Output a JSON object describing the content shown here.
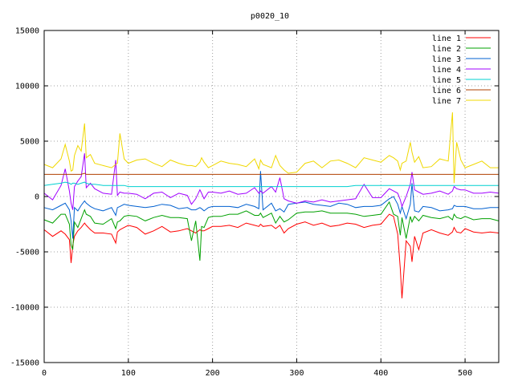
{
  "chart_data": {
    "type": "line",
    "title": "p0020_10",
    "xlabel": "",
    "ylabel": "",
    "xlim": [
      0,
      540
    ],
    "ylim": [
      -15000,
      15000
    ],
    "x_ticks": [
      0,
      100,
      200,
      300,
      400,
      500
    ],
    "y_ticks": [
      -15000,
      -10000,
      -5000,
      0,
      5000,
      10000,
      15000
    ],
    "x_tick_labels": [
      "0",
      "100",
      "200",
      "300",
      "400",
      "500"
    ],
    "y_tick_labels": [
      "-15000",
      "-10000",
      "-5000",
      "0",
      "5000",
      "10000",
      "15000"
    ],
    "grid": true,
    "legend_position": "top-right",
    "x": [
      0,
      10,
      20,
      25,
      30,
      32,
      34,
      36,
      40,
      44,
      48,
      50,
      55,
      60,
      70,
      80,
      85,
      87,
      90,
      95,
      100,
      110,
      120,
      130,
      140,
      150,
      160,
      170,
      175,
      180,
      185,
      187,
      190,
      195,
      200,
      210,
      220,
      230,
      240,
      250,
      255,
      257,
      260,
      270,
      275,
      280,
      285,
      290,
      300,
      310,
      320,
      330,
      340,
      350,
      360,
      370,
      380,
      390,
      400,
      410,
      415,
      420,
      423,
      425,
      430,
      435,
      437,
      440,
      445,
      450,
      460,
      470,
      480,
      485,
      487,
      490,
      495,
      500,
      510,
      520,
      530,
      540
    ],
    "series": [
      {
        "name": "line 1",
        "color": "#ff0000",
        "values": [
          -3000,
          -3600,
          -3100,
          -3400,
          -3900,
          -6000,
          -4400,
          -3600,
          -3100,
          -2800,
          -2400,
          -2600,
          -3000,
          -3300,
          -3300,
          -3400,
          -4200,
          -3200,
          -3000,
          -2800,
          -2600,
          -2800,
          -3400,
          -3100,
          -2700,
          -3200,
          -3100,
          -2900,
          -3100,
          -3300,
          -3000,
          -3100,
          -3100,
          -2900,
          -2700,
          -2700,
          -2600,
          -2800,
          -2400,
          -2600,
          -2700,
          -2500,
          -2700,
          -2600,
          -2900,
          -2600,
          -3300,
          -2900,
          -2500,
          -2300,
          -2600,
          -2400,
          -2700,
          -2600,
          -2400,
          -2500,
          -2800,
          -2600,
          -2500,
          -1600,
          -1800,
          -3400,
          -6500,
          -9200,
          -4000,
          -4500,
          -5900,
          -3600,
          -4800,
          -3300,
          -3000,
          -3300,
          -3500,
          -3200,
          -2800,
          -3200,
          -3300,
          -2900,
          -3200,
          -3300,
          -3200,
          -3300
        ]
      },
      {
        "name": "line 2",
        "color": "#00a000",
        "values": [
          -2100,
          -2400,
          -1600,
          -1600,
          -2500,
          -4400,
          -4800,
          -2300,
          -2800,
          -2000,
          -1200,
          -1600,
          -1800,
          -2400,
          -2500,
          -2000,
          -2900,
          -2300,
          -2200,
          -1800,
          -1700,
          -1800,
          -2200,
          -1900,
          -1700,
          -1900,
          -1900,
          -2000,
          -4000,
          -2200,
          -5800,
          -2700,
          -2800,
          -1900,
          -1800,
          -1800,
          -1600,
          -1600,
          -1300,
          -1700,
          -1700,
          -1500,
          -1900,
          -1500,
          -2400,
          -1800,
          -2300,
          -2100,
          -1500,
          -1400,
          -1400,
          -1300,
          -1500,
          -1500,
          -1500,
          -1600,
          -1800,
          -1700,
          -1600,
          -500,
          -1600,
          -1800,
          -3500,
          -1900,
          -3800,
          -1800,
          -2300,
          -1800,
          -2200,
          -1700,
          -1900,
          -2000,
          -1800,
          -2100,
          -1600,
          -1900,
          -2000,
          -1800,
          -2100,
          -2000,
          -2000,
          -2200
        ]
      },
      {
        "name": "line 3",
        "color": "#0060d0",
        "values": [
          -1000,
          -1200,
          -800,
          -600,
          -1200,
          -2200,
          -3800,
          -1000,
          -1300,
          -800,
          -400,
          -600,
          -900,
          -1100,
          -1300,
          -1000,
          -1700,
          -1000,
          -900,
          -700,
          -800,
          -900,
          -1000,
          -900,
          -700,
          -800,
          -1100,
          -1000,
          -1200,
          -1200,
          -1000,
          -1100,
          -1300,
          -1000,
          -900,
          -900,
          -900,
          -1000,
          -700,
          -900,
          -1100,
          2300,
          -1200,
          -600,
          -1300,
          -1100,
          -1400,
          -700,
          -600,
          -500,
          -700,
          -800,
          -900,
          -600,
          -700,
          -1000,
          -900,
          -900,
          -800,
          -200,
          0,
          -700,
          -1500,
          -900,
          -2000,
          -700,
          1200,
          -1300,
          -1400,
          -900,
          -1000,
          -1300,
          -1200,
          -1100,
          -800,
          -900,
          -900,
          -900,
          -1100,
          -1100,
          -1000,
          -1000
        ]
      },
      {
        "name": "line 4",
        "color": "#a000ff",
        "values": [
          300,
          -300,
          1000,
          2500,
          500,
          -600,
          -1200,
          900,
          1400,
          1800,
          3900,
          800,
          1200,
          700,
          300,
          200,
          3300,
          100,
          400,
          300,
          300,
          200,
          -200,
          300,
          400,
          -100,
          300,
          100,
          -700,
          -200,
          600,
          300,
          -200,
          400,
          400,
          300,
          500,
          200,
          300,
          800,
          300,
          500,
          300,
          900,
          400,
          1700,
          -200,
          -400,
          -600,
          -400,
          -500,
          -300,
          -500,
          -400,
          -300,
          -200,
          1100,
          -100,
          -100,
          700,
          500,
          300,
          -300,
          -900,
          0,
          1100,
          2200,
          600,
          400,
          200,
          300,
          500,
          200,
          500,
          900,
          700,
          600,
          600,
          300,
          300,
          400,
          300
        ]
      },
      {
        "name": "line 5",
        "color": "#00d0d0",
        "values": [
          1000,
          1100,
          1200,
          1300,
          1200,
          1100,
          1200,
          1200,
          1100,
          1200,
          1300,
          1200,
          1100,
          1100,
          1000,
          1000,
          1000,
          1000,
          1000,
          1000,
          900,
          900,
          900,
          900,
          900,
          900,
          900,
          900,
          900,
          900,
          900,
          900,
          900,
          900,
          900,
          900,
          900,
          900,
          900,
          900,
          900,
          900,
          900,
          900,
          900,
          900,
          900,
          900,
          900,
          900,
          900,
          900,
          900,
          900,
          900,
          1000,
          1000,
          1000,
          1000,
          1000,
          1000,
          1000,
          1000,
          1000,
          1000,
          1000,
          1000,
          1000,
          1000,
          1000,
          1000,
          1000,
          1000,
          1000,
          1000,
          1000,
          1000,
          1000,
          1000,
          1000,
          1000,
          1000
        ]
      },
      {
        "name": "line 6",
        "color": "#b04000",
        "values": [
          2000,
          2000,
          2000,
          2000,
          2000,
          2000,
          2000,
          2000,
          2000,
          2000,
          2100,
          2000,
          2000,
          2000,
          2000,
          2000,
          2000,
          2000,
          2000,
          2000,
          2000,
          2000,
          2000,
          2000,
          2000,
          2000,
          2000,
          2000,
          2000,
          2000,
          2000,
          2000,
          2000,
          2000,
          2000,
          2000,
          2000,
          2000,
          2000,
          2000,
          2000,
          2000,
          2000,
          2000,
          2000,
          2000,
          2000,
          2000,
          2000,
          2000,
          2000,
          2000,
          2000,
          2000,
          2000,
          2000,
          2000,
          2000,
          2000,
          2000,
          2000,
          2000,
          2000,
          2000,
          2000,
          2000,
          2000,
          2000,
          2000,
          2000,
          2000,
          2000,
          2000,
          2000,
          2000,
          2000,
          2000,
          2000,
          2000,
          2000,
          2000,
          2000
        ]
      },
      {
        "name": "line 7",
        "color": "#f0d800",
        "values": [
          2900,
          2600,
          3400,
          4700,
          3200,
          2300,
          2400,
          3700,
          4600,
          4100,
          6600,
          3500,
          3800,
          3000,
          2800,
          2600,
          2900,
          3000,
          5700,
          3400,
          3000,
          3300,
          3400,
          3000,
          2700,
          3300,
          3000,
          2800,
          2800,
          2700,
          3100,
          3500,
          3100,
          2600,
          2800,
          3200,
          3000,
          2900,
          2700,
          3400,
          2500,
          3300,
          2900,
          2600,
          3700,
          2800,
          2400,
          2100,
          2200,
          3000,
          3200,
          2600,
          3200,
          3300,
          3000,
          2600,
          3500,
          3300,
          3100,
          3700,
          3500,
          3200,
          2400,
          3000,
          3200,
          4900,
          4000,
          3100,
          3600,
          2600,
          2700,
          3400,
          3200,
          7600,
          1200,
          4900,
          3300,
          2600,
          2900,
          3200,
          2600,
          2600
        ]
      }
    ]
  }
}
